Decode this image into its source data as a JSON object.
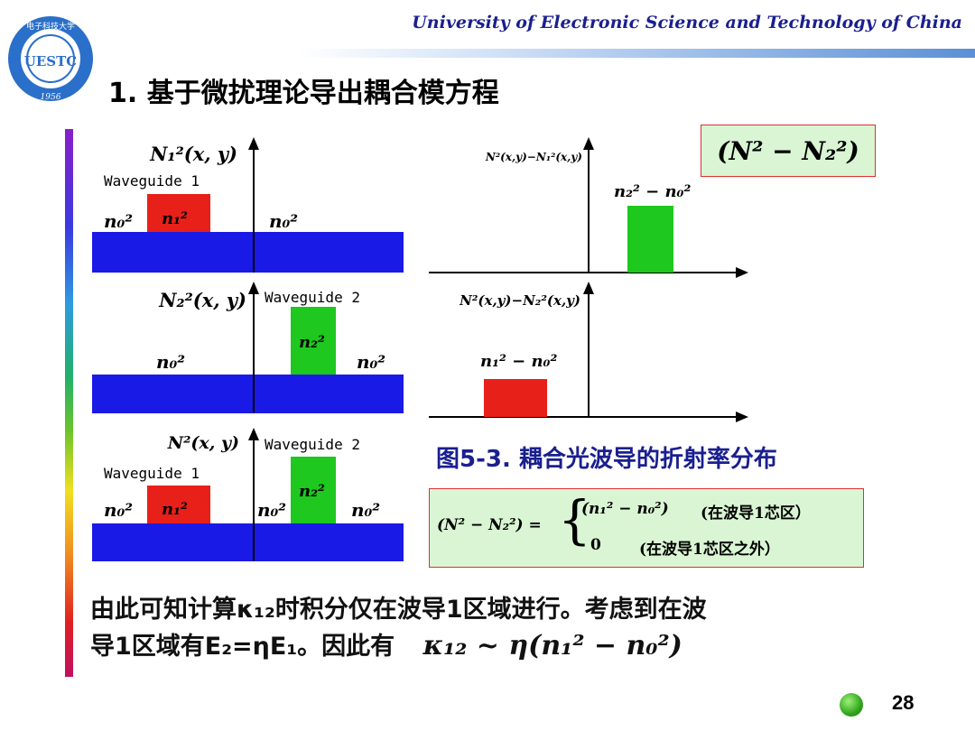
{
  "header": {
    "university": "University of Electronic Science and Technology of China",
    "logo": {
      "text": "UESTC",
      "year": "1956",
      "chars": "电子科技大学"
    }
  },
  "slide": {
    "title": "1. 基于微扰理论导出耦合模方程",
    "page_number": "28"
  },
  "figure": {
    "panels": [
      {
        "left_label": "N₁²(x, y)",
        "waveguide_tag": "Waveguide 1",
        "n_left": "n₀²",
        "n_core": "n₁²",
        "n_right": "n₀²",
        "right_label": "N²(x,y)−N₁²(x,y)",
        "diff_label": "n₂² − n₀²"
      },
      {
        "left_label": "N₂²(x, y)",
        "waveguide_tag": "Waveguide 2",
        "n_left": "n₀²",
        "n_core": "n₂²",
        "n_right": "n₀²",
        "right_label": "N²(x,y)−N₂²(x,y)",
        "diff_label": "n₁² − n₀²"
      },
      {
        "left_label": "N²(x, y)",
        "waveguide_tag_1": "Waveguide 1",
        "waveguide_tag_2": "Waveguide 2",
        "n_left": "n₀²",
        "n_core1": "n₁²",
        "n_mid": "n₀²",
        "n_core2": "n₂²",
        "n_right": "n₀²"
      }
    ],
    "caption": "图5-3. 耦合光波导的折射率分布",
    "eq_top": "(N² − N₂²)",
    "eq_piecewise": {
      "lhs": "(N² − N₂²) =",
      "case1_expr": "(n₁² − n₀²)",
      "case1_cond": "(在波导1芯区）",
      "case2_expr": "0",
      "case2_cond": "(在波导1芯区之外）"
    }
  },
  "body_text": {
    "line1": "由此可知计算κ₁₂时积分仅在波导1区域进行。考虑到在波",
    "line2": "导1区域有E₂=ηE₁。因此有",
    "formula": "κ₁₂ ~ η(n₁² − n₀²)"
  },
  "colors": {
    "substrate": "#1a1ae6",
    "core1": "#e8201a",
    "core2": "#1ec81e",
    "title_blue": "#1a1f8f",
    "box_fill": "#d9f5d3",
    "box_border": "#e03030"
  }
}
